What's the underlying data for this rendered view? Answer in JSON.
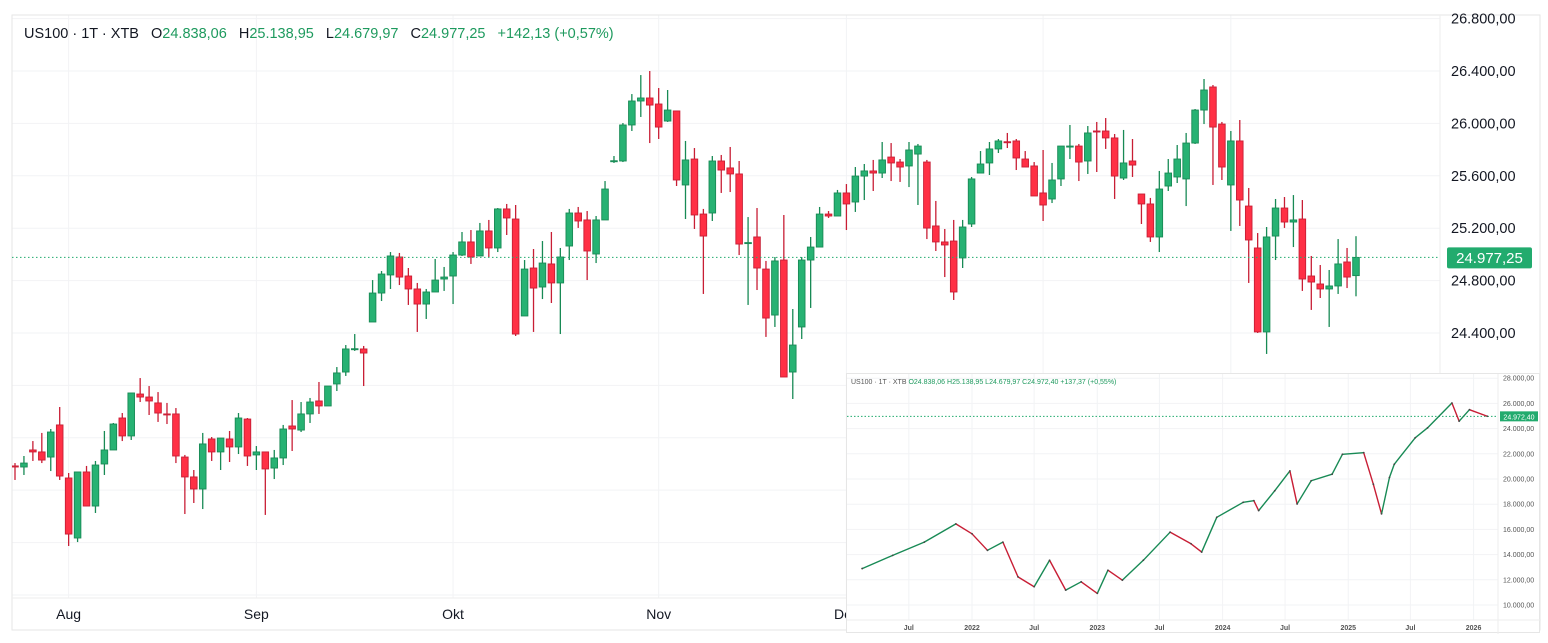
{
  "legend": {
    "symbol": "US100 · 1T · XTB",
    "open_label": "O",
    "open": "24.838,06",
    "high_label": "H",
    "high": "25.138,95",
    "low_label": "L",
    "low": "24.679,97",
    "close_label": "C",
    "close": "24.977,25",
    "change": "+142,13 (+0,57%)"
  },
  "colors": {
    "up": "#27b273",
    "up_border": "#188a55",
    "down": "#ff3045",
    "down_border": "#c81e35",
    "price_line": "#22ab6e",
    "grid": "#f2f3f5"
  },
  "inset_legend": {
    "symbol": "US100 · 1T · XTB",
    "open": "O24.838,06",
    "high": "H25.138,95",
    "low": "L24.679,97",
    "close": "C24.972,40",
    "change": "+137,37 (+0,55%)"
  },
  "chart_data": [
    {
      "type": "candlestick",
      "timeframe": "1T",
      "ylim": [
        22300,
        26850
      ],
      "grid": true,
      "y_ticks": [
        26800,
        26400,
        26000,
        25600,
        25200,
        24800,
        24400
      ],
      "y_tick_labels": [
        "26.800,00",
        "26.400,00",
        "26.000,00",
        "25.600,00",
        "25.200,00",
        "24.800,00",
        "24.400,00"
      ],
      "x_ticks": [
        {
          "label": "Aug",
          "index": 6
        },
        {
          "label": "Sep",
          "index": 27
        },
        {
          "label": "Okt",
          "index": 49
        },
        {
          "label": "Nov",
          "index": 72
        },
        {
          "label": "Dez",
          "index": 93
        }
      ],
      "last_price": 24977.25,
      "last_price_label": "24.977,25",
      "ohlc_fields": [
        "open",
        "high",
        "low",
        "close"
      ],
      "candles": [
        [
          23385,
          23407,
          23278,
          23377
        ],
        [
          23377,
          23461,
          23316,
          23407
        ],
        [
          23507,
          23575,
          23423,
          23492
        ],
        [
          23492,
          23637,
          23407,
          23430
        ],
        [
          23453,
          23667,
          23346,
          23644
        ],
        [
          23698,
          23835,
          23278,
          23308
        ],
        [
          23293,
          23331,
          22774,
          22865
        ],
        [
          22835,
          23339,
          22804,
          23339
        ],
        [
          23339,
          23385,
          23079,
          23079
        ],
        [
          23079,
          23423,
          23026,
          23392
        ],
        [
          23400,
          23652,
          23316,
          23507
        ],
        [
          23507,
          23713,
          23507,
          23705
        ],
        [
          23751,
          23789,
          23575,
          23614
        ],
        [
          23614,
          23942,
          23583,
          23942
        ],
        [
          23934,
          24056,
          23873,
          23911
        ],
        [
          23911,
          23995,
          23774,
          23881
        ],
        [
          23866,
          23949,
          23721,
          23789
        ],
        [
          23782,
          23866,
          23705,
          23780
        ],
        [
          23782,
          23827,
          23407,
          23461
        ],
        [
          23453,
          23469,
          23018,
          23301
        ],
        [
          23301,
          23354,
          23102,
          23209
        ],
        [
          23209,
          23637,
          23056,
          23553
        ],
        [
          23591,
          23606,
          23423,
          23492
        ],
        [
          23492,
          23598,
          23354,
          23598
        ],
        [
          23591,
          23652,
          23415,
          23530
        ],
        [
          23530,
          23789,
          23476,
          23751
        ],
        [
          23743,
          23751,
          23385,
          23461
        ],
        [
          23469,
          23537,
          23354,
          23492
        ],
        [
          23492,
          23492,
          23011,
          23362
        ],
        [
          23369,
          23507,
          23285,
          23446
        ],
        [
          23446,
          23698,
          23392,
          23667
        ],
        [
          23690,
          23888,
          23499,
          23667
        ],
        [
          23659,
          23873,
          23644,
          23782
        ],
        [
          23782,
          23904,
          23713,
          23873
        ],
        [
          23881,
          24026,
          23782,
          23843
        ],
        [
          23843,
          23995,
          23843,
          23995
        ],
        [
          24011,
          24140,
          23957,
          24095
        ],
        [
          24102,
          24308,
          24072,
          24278
        ],
        [
          24278,
          24392,
          24263,
          24280
        ],
        [
          24278,
          24301,
          23995,
          24247
        ],
        [
          24484,
          24804,
          24484,
          24705
        ],
        [
          24705,
          24873,
          24644,
          24850
        ],
        [
          24843,
          25018,
          24736,
          24988
        ],
        [
          24980,
          25011,
          24766,
          24827
        ],
        [
          24835,
          24896,
          24614,
          24736
        ],
        [
          24736,
          24782,
          24408,
          24621
        ],
        [
          24621,
          24736,
          24507,
          24713
        ],
        [
          24713,
          24965,
          24713,
          24804
        ],
        [
          24812,
          24904,
          24721,
          24827
        ],
        [
          24835,
          25018,
          24621,
          24995
        ],
        [
          24995,
          25171,
          24988,
          25095
        ],
        [
          25095,
          25186,
          24927,
          24980
        ],
        [
          24988,
          25240,
          24988,
          25179
        ],
        [
          25179,
          25263,
          24980,
          25049
        ],
        [
          25049,
          25354,
          25018,
          25347
        ],
        [
          25347,
          25385,
          25148,
          25278
        ],
        [
          25270,
          25377,
          24377,
          24392
        ],
        [
          24530,
          24957,
          24530,
          24888
        ],
        [
          24896,
          25041,
          24408,
          24743
        ],
        [
          24751,
          25102,
          24659,
          24934
        ],
        [
          24927,
          25171,
          24629,
          24782
        ],
        [
          24782,
          25049,
          24392,
          24980
        ],
        [
          25064,
          25347,
          24957,
          25316
        ],
        [
          25316,
          25362,
          25202,
          25255
        ],
        [
          25263,
          25331,
          24804,
          25026
        ],
        [
          25003,
          25293,
          24934,
          25263
        ],
        [
          25263,
          25560,
          25263,
          25499
        ],
        [
          25713,
          25751,
          25698,
          25715
        ],
        [
          25713,
          26003,
          25705,
          25988
        ],
        [
          25988,
          26224,
          25942,
          26171
        ],
        [
          26171,
          26369,
          26049,
          26194
        ],
        [
          26194,
          26400,
          25850,
          26140
        ],
        [
          26148,
          26270,
          25881,
          25972
        ],
        [
          26018,
          26255,
          26011,
          26102
        ],
        [
          26095,
          26095,
          25522,
          25568
        ],
        [
          25530,
          25866,
          25270,
          25721
        ],
        [
          25728,
          25812,
          25194,
          25301
        ],
        [
          25308,
          25347,
          24698,
          25140
        ],
        [
          25316,
          25751,
          25255,
          25713
        ],
        [
          25713,
          25759,
          25469,
          25644
        ],
        [
          25660,
          25820,
          25476,
          25614
        ],
        [
          25614,
          25713,
          24995,
          25079
        ],
        [
          25087,
          25285,
          24614,
          25090
        ],
        [
          25133,
          25354,
          24728,
          24896
        ],
        [
          24888,
          24950,
          24370,
          24514
        ],
        [
          24537,
          24980,
          24446,
          24950
        ],
        [
          24957,
          25301,
          24064,
          24064
        ],
        [
          24102,
          24583,
          23896,
          24308
        ],
        [
          24446,
          24980,
          24354,
          24957
        ],
        [
          24957,
          25133,
          24591,
          25056
        ],
        [
          25056,
          25362,
          25056,
          25308
        ],
        [
          25308,
          25331,
          25278,
          25293
        ],
        [
          25293,
          25492,
          25293,
          25469
        ],
        [
          25469,
          25537,
          25186,
          25385
        ],
        [
          25400,
          25667,
          25324,
          25598
        ],
        [
          25598,
          25690,
          25415,
          25637
        ],
        [
          25637,
          25721,
          25484,
          25621
        ],
        [
          25621,
          25858,
          25583,
          25721
        ],
        [
          25743,
          25850,
          25560,
          25698
        ],
        [
          25705,
          25728,
          25553,
          25667
        ],
        [
          25675,
          25858,
          25514,
          25797
        ],
        [
          25766,
          25843,
          25377,
          25827
        ],
        [
          25705,
          25721,
          25117,
          25201
        ],
        [
          25217,
          25408,
          25026,
          25095
        ],
        [
          25095,
          25194,
          24827,
          25072
        ],
        [
          25102,
          25263,
          24652,
          24713
        ],
        [
          24973,
          25263,
          24896,
          25209
        ],
        [
          25232,
          25591,
          25209,
          25576
        ],
        [
          25621,
          25789,
          25621,
          25690
        ],
        [
          25698,
          25858,
          25606,
          25805
        ],
        [
          25805,
          25881,
          25774,
          25866
        ],
        [
          25860,
          25927,
          25812,
          25858
        ],
        [
          25866,
          25881,
          25644,
          25736
        ],
        [
          25728,
          25789,
          25667,
          25667
        ],
        [
          25675,
          25705,
          25446,
          25446
        ],
        [
          25469,
          25797,
          25255,
          25377
        ],
        [
          25423,
          25698,
          25392,
          25568
        ],
        [
          25576,
          25827,
          25522,
          25827
        ],
        [
          25825,
          25988,
          25728,
          25827
        ],
        [
          25827,
          25843,
          25560,
          25705
        ],
        [
          25713,
          25980,
          25614,
          25927
        ],
        [
          25942,
          26011,
          25629,
          25940
        ],
        [
          25942,
          26041,
          25805,
          25889
        ],
        [
          25889,
          25919,
          25423,
          25598
        ],
        [
          25583,
          25950,
          25568,
          25698
        ],
        [
          25713,
          25881,
          25591,
          25682
        ],
        [
          25461,
          25461,
          25232,
          25385
        ],
        [
          25385,
          25431,
          25095,
          25133
        ],
        [
          25133,
          25637,
          25018,
          25499
        ],
        [
          25522,
          25728,
          25484,
          25621
        ],
        [
          25591,
          25835,
          25545,
          25728
        ],
        [
          25576,
          25927,
          25369,
          25850
        ],
        [
          25850,
          26110,
          25843,
          26102
        ],
        [
          26102,
          26339,
          25995,
          26255
        ],
        [
          26278,
          26293,
          25530,
          25972
        ],
        [
          25995,
          26011,
          25568,
          25667
        ],
        [
          25530,
          25942,
          25179,
          25866
        ],
        [
          25866,
          26026,
          25217,
          25415
        ],
        [
          25369,
          25507,
          24782,
          25110
        ],
        [
          25049,
          25163,
          24400,
          24408
        ],
        [
          24408,
          25209,
          24240,
          25133
        ],
        [
          25140,
          25423,
          24957,
          25354
        ],
        [
          25354,
          25438,
          25202,
          25247
        ],
        [
          25247,
          25453,
          25056,
          25263
        ],
        [
          25270,
          25415,
          24721,
          24812
        ],
        [
          24835,
          24988,
          24576,
          24789
        ],
        [
          24774,
          24919,
          24667,
          24736
        ],
        [
          24736,
          24881,
          24446,
          24759
        ],
        [
          24759,
          25117,
          24698,
          24927
        ],
        [
          24942,
          25049,
          24743,
          24827
        ],
        [
          24838,
          25139,
          24680,
          24977
        ]
      ]
    },
    {
      "type": "line",
      "ylim": [
        9000,
        28500
      ],
      "grid": true,
      "y_ticks": [
        28000,
        26000,
        24000,
        22000,
        20000,
        18000,
        16000,
        14000,
        12000,
        10000
      ],
      "y_tick_labels": [
        "28.000,00",
        "26.000,00",
        "24.000,00",
        "22.000,00",
        "20.000,00",
        "18.000,00",
        "16.000,00",
        "14.000,00",
        "12.000,00",
        "10.000,00"
      ],
      "x_ticks": [
        {
          "label": "Jul",
          "date": "2021-07-01"
        },
        {
          "label": "2022",
          "date": "2022-01-01"
        },
        {
          "label": "Jul",
          "date": "2022-07-01"
        },
        {
          "label": "2023",
          "date": "2023-01-01"
        },
        {
          "label": "Jul",
          "date": "2023-07-01"
        },
        {
          "label": "2024",
          "date": "2024-01-01"
        },
        {
          "label": "Jul",
          "date": "2024-07-01"
        },
        {
          "label": "2025",
          "date": "2025-01-01"
        },
        {
          "label": "Jul",
          "date": "2025-07-01"
        },
        {
          "label": "2026",
          "date": "2026-01-01"
        }
      ],
      "last_price": 24972.4,
      "last_price_label": "24.972,40",
      "x": [
        "2021-02-15",
        "2021-05-15",
        "2021-08-15",
        "2021-11-15",
        "2022-01-01",
        "2022-02-15",
        "2022-04-01",
        "2022-05-15",
        "2022-07-01",
        "2022-08-15",
        "2022-10-01",
        "2022-11-15",
        "2023-01-01",
        "2023-02-01",
        "2023-03-15",
        "2023-05-15",
        "2023-08-01",
        "2023-10-01",
        "2023-11-01",
        "2023-12-15",
        "2024-03-01",
        "2024-04-01",
        "2024-04-15",
        "2024-06-01",
        "2024-07-15",
        "2024-08-05",
        "2024-09-15",
        "2024-11-15",
        "2024-12-15",
        "2025-02-15",
        "2025-03-15",
        "2025-04-08",
        "2025-05-01",
        "2025-05-15",
        "2025-07-15",
        "2025-08-20",
        "2025-10-30",
        "2025-11-20",
        "2025-12-20",
        "2026-02-10"
      ],
      "y": [
        12890,
        13940,
        14990,
        16440,
        15650,
        14340,
        14990,
        12230,
        11450,
        13550,
        11180,
        11840,
        10920,
        12760,
        11970,
        13550,
        15780,
        14860,
        14200,
        16960,
        18150,
        18280,
        17490,
        19070,
        20640,
        18020,
        19860,
        20380,
        21960,
        22090,
        19590,
        17230,
        20120,
        21170,
        23270,
        24060,
        26030,
        24590,
        25500,
        24980
      ]
    }
  ]
}
